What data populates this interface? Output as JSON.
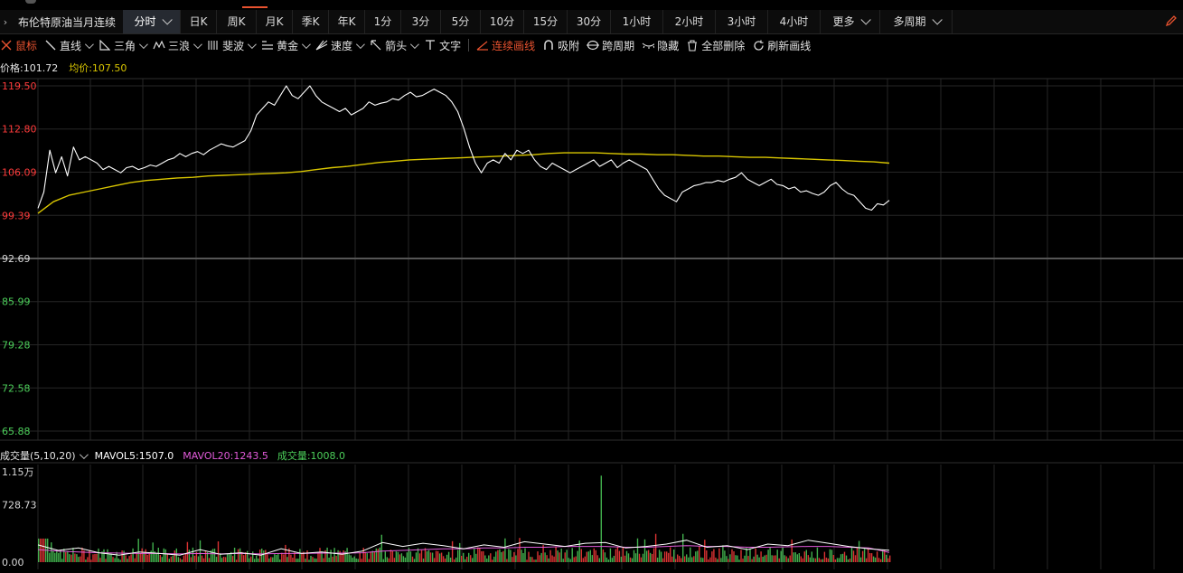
{
  "tabbar": {
    "lead": "›",
    "symbol": "布伦特原油当月连续",
    "tabs": [
      {
        "label": "分时",
        "active": true,
        "dropdown": true
      },
      {
        "label": "日K"
      },
      {
        "label": "周K"
      },
      {
        "label": "月K"
      },
      {
        "label": "季K"
      },
      {
        "label": "年K"
      },
      {
        "label": "1分"
      },
      {
        "label": "3分"
      },
      {
        "label": "5分"
      },
      {
        "label": "10分"
      },
      {
        "label": "15分"
      },
      {
        "label": "30分"
      },
      {
        "label": "1小时"
      },
      {
        "label": "2小时"
      },
      {
        "label": "3小时"
      },
      {
        "label": "4小时"
      },
      {
        "label": "更多",
        "dropdown": true
      },
      {
        "label": "多周期",
        "dropdown": true
      }
    ]
  },
  "toolbar": {
    "cursor": "鼠标",
    "line": "直线",
    "triangle": "三角",
    "wave": "三浪",
    "fib": "斐波",
    "gold": "黄金",
    "speed": "速度",
    "arrow": "箭头",
    "text": "文字",
    "continuous": "连续画线",
    "snap": "吸附",
    "cross_period": "跨周期",
    "hide": "隐藏",
    "delete_all": "全部删除",
    "refresh": "刷新画线"
  },
  "price_header": {
    "price": "价格:101.72",
    "avg": "均价:107.50"
  },
  "volume_header": {
    "name": "成交量(5,10,20)",
    "mavol5": "MAVOL5:1507.0",
    "mavol20": "MAVOL20:1243.5",
    "vol": "成交量:1008.0"
  },
  "colors": {
    "up": "#ff3b3b",
    "down": "#4ccf5a",
    "price_line": "#ffffff",
    "avg_line": "#d9c600",
    "grid": "#262626",
    "accent": "#e8522f"
  },
  "chart_data": [
    {
      "type": "line",
      "yticks": [
        "119.50",
        "112.80",
        "106.09",
        "99.39",
        "92.69",
        "85.99",
        "79.28",
        "72.58",
        "65.88"
      ],
      "ylim": [
        65.88,
        119.5
      ],
      "base": 92.69,
      "series": [
        {
          "values": [
            100.5,
            103,
            109.5,
            106,
            108.5,
            105.5,
            110,
            108,
            108.5,
            108,
            107.5,
            106.5,
            107,
            106.5,
            106,
            106.8,
            107,
            106.5,
            106.8,
            107.2,
            107,
            107.5,
            108,
            108.3,
            109,
            108.5,
            109,
            109.3,
            108.8,
            109.5,
            110,
            110.5,
            110.2,
            110,
            110.5,
            111,
            112.5,
            115,
            116,
            117,
            116.5,
            118,
            119.5,
            118,
            117.5,
            118.5,
            119.5,
            118,
            117,
            116.5,
            116,
            115.5,
            116,
            115,
            115.5,
            116,
            117,
            116.5,
            116.8,
            117,
            117.5,
            117.3,
            118,
            118.5,
            117.8,
            118,
            118.5,
            119,
            118.5,
            118,
            117,
            115.5,
            113,
            110,
            107.5,
            106,
            107.5,
            108,
            107.5,
            109,
            108,
            109.5,
            109,
            109.5,
            108,
            107,
            106.5,
            107.5,
            107,
            106.5,
            106,
            106.5,
            107,
            107.5,
            108,
            107,
            107.5,
            108,
            106.8,
            107.5,
            108,
            107.5,
            107,
            106.5,
            105,
            103.5,
            102.5,
            102,
            101.5,
            103,
            103.5,
            104,
            104.2,
            104.5,
            104.5,
            104.8,
            104.6,
            105,
            105.3,
            106,
            105,
            104.5,
            104,
            104.5,
            105,
            104.2,
            104,
            103.5,
            103.8,
            103,
            103.2,
            102.8,
            102.5,
            103,
            104,
            104.5,
            103.5,
            102.8,
            102.5,
            101.5,
            100.5,
            100.2,
            101.2,
            101,
            101.72
          ]
        },
        {
          "values": [
            99.7,
            101.5,
            102.5,
            103,
            103.5,
            104,
            104.5,
            104.8,
            105,
            105.2,
            105.3,
            105.5,
            105.6,
            105.7,
            105.8,
            105.9,
            106,
            106.2,
            106.5,
            106.8,
            107,
            107.3,
            107.6,
            107.8,
            108,
            108.1,
            108.2,
            108.3,
            108.4,
            108.5,
            108.6,
            108.7,
            108.8,
            109,
            109.1,
            109.1,
            109.1,
            109,
            108.9,
            108.9,
            108.8,
            108.8,
            108.7,
            108.6,
            108.6,
            108.5,
            108.4,
            108.4,
            108.3,
            108.2,
            108.1,
            108,
            107.9,
            107.8,
            107.7,
            107.5
          ]
        }
      ]
    },
    {
      "type": "bar",
      "yticks": [
        "1.15万",
        "728.73",
        "0.00"
      ],
      "ylim": [
        0,
        11500
      ],
      "series": [
        {
          "name": "MAVOL5",
          "values": [
            2200,
            1500,
            1800,
            1200,
            900,
            1300,
            1100,
            900,
            1600,
            1000,
            1200,
            900,
            1700,
            1100,
            1300,
            1000,
            1400,
            2500,
            2000,
            2400,
            2100,
            1700,
            2200,
            1900,
            2600,
            2300,
            2000,
            2400,
            2500,
            1800,
            2000,
            2300,
            2800,
            1900,
            2100,
            1600,
            2300,
            2100,
            2800,
            2400,
            2000,
            1700,
            1507
          ]
        },
        {
          "name": "MAVOL20",
          "values": [
            1600,
            1400,
            1300,
            1200,
            1150,
            1100,
            1100,
            1050,
            1100,
            1050,
            1100,
            1050,
            1100,
            1100,
            1150,
            1150,
            1200,
            1400,
            1500,
            1600,
            1700,
            1700,
            1800,
            1800,
            1900,
            1900,
            2000,
            2000,
            2000,
            1900,
            1900,
            2000,
            2100,
            2000,
            2000,
            1900,
            1900,
            1950,
            2000,
            2000,
            1900,
            1800,
            1243.5
          ]
        }
      ]
    }
  ]
}
